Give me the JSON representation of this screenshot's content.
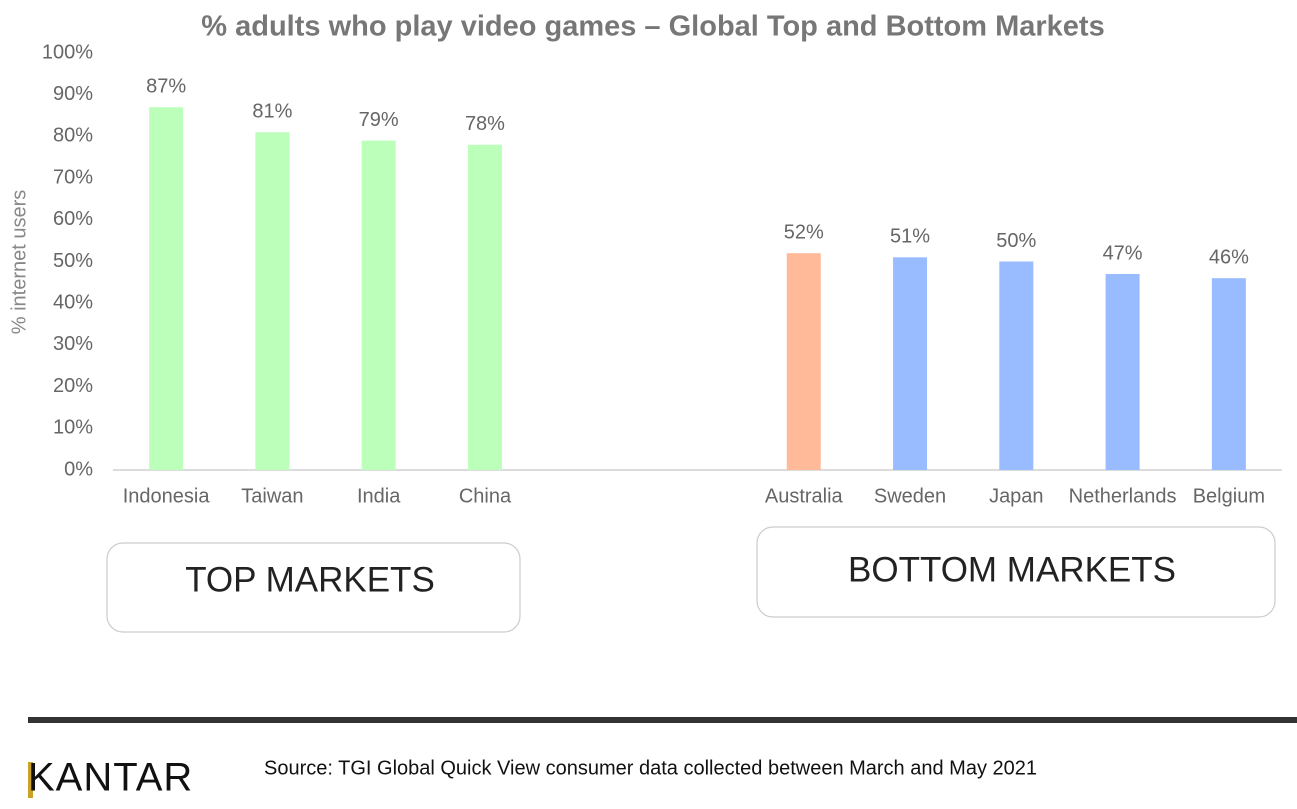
{
  "chart_data": {
    "type": "bar",
    "title": "% adults who play video games – Global Top and Bottom Markets",
    "y_label": "% internet users",
    "categories": [
      "Indonesia",
      "Taiwan",
      "India",
      "China",
      null,
      null,
      "Australia",
      "Sweden",
      "Japan",
      "Netherlands",
      "Belgium"
    ],
    "values": [
      87,
      81,
      79,
      78,
      null,
      null,
      52,
      51,
      50,
      47,
      46
    ],
    "value_labels": [
      "87%",
      "81%",
      "79%",
      "78%",
      null,
      null,
      "52%",
      "51%",
      "50%",
      "47%",
      "46%"
    ],
    "colors": [
      "#bbffbb",
      "#bbffbb",
      "#bbffbb",
      "#bbffbb",
      null,
      null,
      "#ffbb99",
      "#99bbff",
      "#99bbff",
      "#99bbff",
      "#99bbff"
    ],
    "ylim": [
      0,
      100
    ],
    "yticks": [
      {
        "value": 0,
        "label": "0%"
      },
      {
        "value": 10,
        "label": "10%"
      },
      {
        "value": 20,
        "label": "20%"
      },
      {
        "value": 30,
        "label": "30%"
      },
      {
        "value": 40,
        "label": "40%"
      },
      {
        "value": 50,
        "label": "50%"
      },
      {
        "value": 60,
        "label": "60%"
      },
      {
        "value": 70,
        "label": "70%"
      },
      {
        "value": 80,
        "label": "80%"
      },
      {
        "value": 90,
        "label": "90%"
      },
      {
        "value": 100,
        "label": "100%"
      }
    ],
    "grid": false,
    "annotations": [
      "TOP MARKETS",
      "BOTTOM MARKETS"
    ]
  },
  "footer": {
    "logo": "KANTAR",
    "source": "Source: TGI Global Quick View consumer data collected between March and May 2021"
  }
}
